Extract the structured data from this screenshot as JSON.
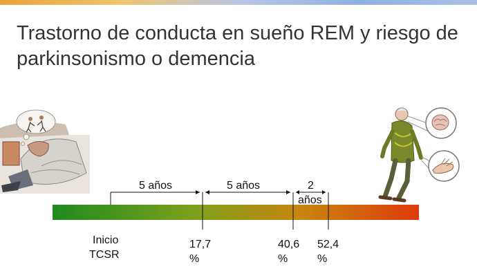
{
  "slide": {
    "title": "Trastorno de conducta en sueño REM y riesgo de parkinsonismo o demencia"
  },
  "timeline": {
    "gradient_colors": [
      "#1f8a1f",
      "#7ba01b",
      "#c8850f",
      "#de3a0a"
    ],
    "intervals": [
      {
        "label": "5 años"
      },
      {
        "label": "5 años"
      },
      {
        "label_line1": "2",
        "label_line2": "años"
      }
    ],
    "markers": [
      {
        "label_line1": "Inicio",
        "label_line2": "TCSR"
      },
      {
        "label_line1": "17,7",
        "label_line2": "%"
      },
      {
        "label_line1": "40,6",
        "label_line2": "%"
      },
      {
        "label_line1": "52,4",
        "label_line2": "%"
      }
    ]
  },
  "illustrations": {
    "left": "sleeping-man-dreaming-illustration",
    "right": "elderly-man-parkinsonism-illustration"
  }
}
